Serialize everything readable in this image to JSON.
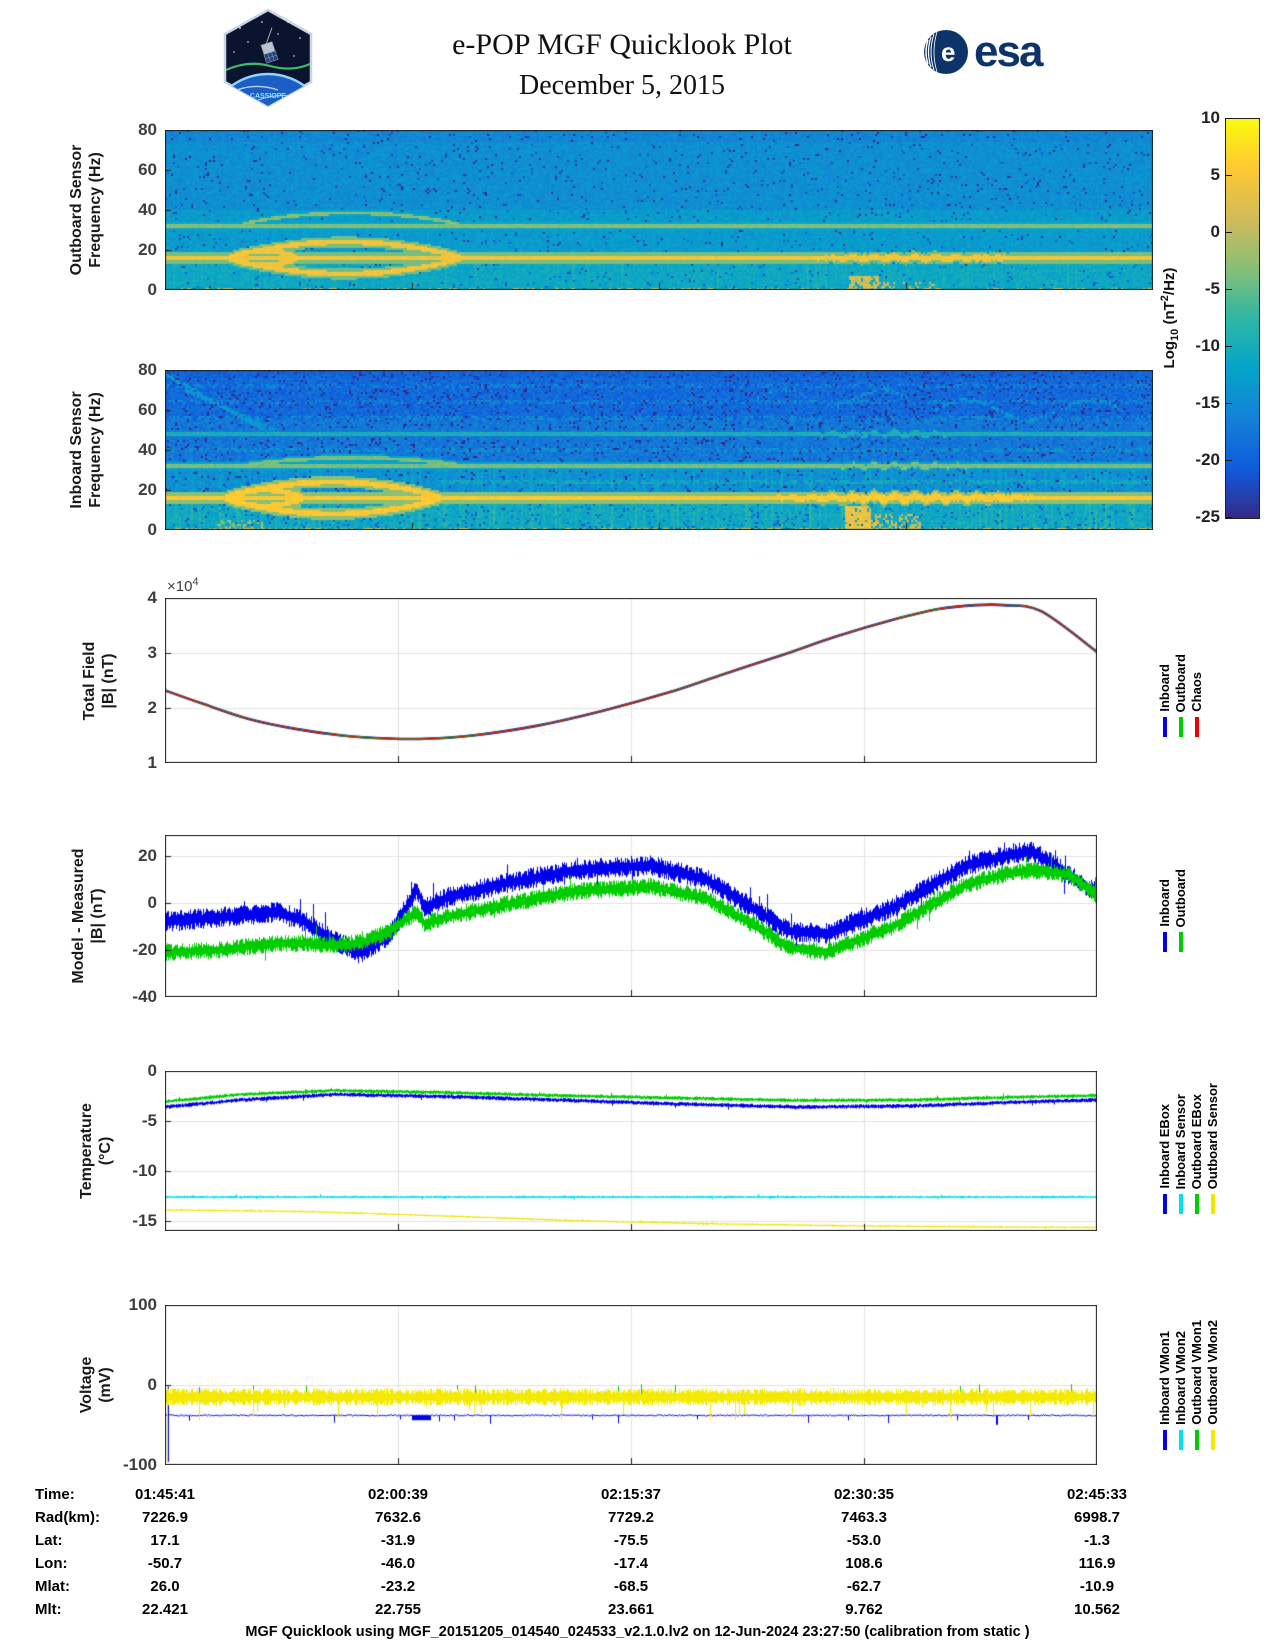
{
  "header": {
    "title": "e-POP MGF Quicklook Plot",
    "date": "December 5, 2015",
    "esa_label": "esa",
    "patch_label": "CASSIOPE"
  },
  "colorbar": {
    "label": {
      "pre": "Log",
      "sub": "10",
      "mid": " (nT",
      "sup": "2",
      "post": "/Hz)"
    },
    "min": -25,
    "max": 10,
    "tick_vals": [
      10,
      5,
      0,
      -5,
      -10,
      -15,
      -20,
      -25
    ],
    "tick_labels": [
      "10",
      "5",
      "0",
      "-5",
      "-10",
      "-15",
      "-20",
      "-25"
    ],
    "colors": [
      "#352a87",
      "#0f5cdd",
      "#1481d6",
      "#06a4ca",
      "#2eb7a4",
      "#87bf77",
      "#d1bb59",
      "#fec832",
      "#f9fb0e"
    ]
  },
  "chart_data": [
    {
      "type": "heatmap",
      "name": "outboard-spectrogram",
      "ylabel": [
        "Outboard Sensor",
        "Frequency (Hz)"
      ],
      "ylim": [
        0,
        80
      ],
      "ytick_vals": [
        80,
        60,
        40,
        20,
        0
      ],
      "ytick_labels": [
        "80",
        "60",
        "40",
        "20",
        "0"
      ],
      "value_units": "Log10 (nT^2/Hz)",
      "bands": [
        {
          "fmin": 40,
          "fmax": 80,
          "v": 0.3
        },
        {
          "fmin": 18,
          "fmax": 40,
          "v": 0.345
        },
        {
          "fmin": 0,
          "fmax": 18,
          "v": 0.4
        }
      ],
      "top_dark": {
        "fmin": 74,
        "v": 0.27
      },
      "noise": 0.045,
      "dark_speckle": 0.035,
      "lines": [
        {
          "f": 32,
          "v": 0.64,
          "hw": 0.8,
          "bump": {
            "x0": 0.075,
            "x1": 0.3,
            "amp": 6.5
          }
        },
        {
          "f": 16,
          "v": 0.85,
          "hw": 1.3,
          "eyes": [
            {
              "x0": 0.064,
              "x1": 0.3,
              "amp": 8
            },
            {
              "x0": 0.064,
              "x1": 0.135,
              "amp": 3.5
            }
          ],
          "wiggle": {
            "x0": 0.66,
            "x1": 0.86,
            "amp": 1.6
          }
        }
      ],
      "bursts": [
        {
          "x0": 0.693,
          "x1": 0.722,
          "fmax": 7,
          "v": 0.8,
          "density": 0.8
        },
        {
          "x0": 0.722,
          "x1": 0.78,
          "fmax": 4,
          "v": 0.78,
          "density": 0.3
        }
      ],
      "bottom_speckle": {
        "fmax": 1.4,
        "v": 0.78,
        "density": 0.3
      },
      "streaks": {
        "prob": 0.06,
        "add": 0.035,
        "fmax": 20
      }
    },
    {
      "type": "heatmap",
      "name": "inboard-spectrogram",
      "ylabel": [
        "Inboard Sensor",
        "Frequency (Hz)"
      ],
      "ylim": [
        0,
        80
      ],
      "ytick_vals": [
        80,
        60,
        40,
        20,
        0
      ],
      "ytick_labels": [
        "80",
        "60",
        "40",
        "20",
        "0"
      ],
      "value_units": "Log10 (nT^2/Hz)",
      "bands": [
        {
          "fmin": 55,
          "fmax": 80,
          "v": 0.17
        },
        {
          "fmin": 30,
          "fmax": 55,
          "v": 0.22
        },
        {
          "fmin": 18,
          "fmax": 30,
          "v": 0.3
        },
        {
          "fmin": 0,
          "fmax": 18,
          "v": 0.4
        }
      ],
      "top_dark": {
        "fmin": 76,
        "v": 0.15
      },
      "noise": 0.055,
      "dark_speckle": 0.06,
      "lines": [
        {
          "f": 48,
          "v": 0.46,
          "hw": 0.8,
          "wiggle": {
            "x0": 0.64,
            "x1": 0.82,
            "amp": 2.0
          }
        },
        {
          "f": 32,
          "v": 0.62,
          "hw": 0.9,
          "bump": {
            "x0": 0.08,
            "x1": 0.3,
            "amp": 4
          },
          "wiggle": {
            "x0": 0.64,
            "x1": 0.86,
            "amp": 1.5
          }
        },
        {
          "f": 16,
          "v": 0.88,
          "hw": 1.4,
          "eyes": [
            {
              "x0": 0.06,
              "x1": 0.28,
              "amp": 8
            },
            {
              "x0": 0.06,
              "x1": 0.14,
              "amp": 4
            }
          ],
          "wiggle": {
            "x0": 0.62,
            "x1": 0.88,
            "amp": 2.2
          }
        }
      ],
      "faint_lines": [
        {
          "f": 24,
          "v": 0.42,
          "hw": 0.6,
          "density": 0.55,
          "x0": 0.28
        },
        {
          "f": 40,
          "v": 0.33,
          "hw": 0.5,
          "density": 0.35
        },
        {
          "f": 56,
          "v": 0.3,
          "hw": 0.6,
          "density": 0.4
        },
        {
          "f": 64,
          "v": 0.29,
          "hw": 0.6,
          "density": 0.35
        },
        {
          "f": 72,
          "v": 0.28,
          "hw": 0.5,
          "density": 0.3
        }
      ],
      "top_curves": [
        {
          "x0": 0.0,
          "x1": 0.1,
          "f0": 78,
          "f1": 50,
          "v": 0.35,
          "density": 0.7
        },
        {
          "x0": 0.02,
          "x1": 0.12,
          "f0": 70,
          "f1": 48,
          "v": 0.33,
          "density": 0.7
        },
        {
          "x0": 0.78,
          "x1": 0.97,
          "f": 60,
          "amp": 5,
          "v": 0.33,
          "density": 0.6
        },
        {
          "x0": 0.6,
          "x1": 0.75,
          "f": 66,
          "amp": 4,
          "v": 0.32,
          "density": 0.5
        }
      ],
      "bursts": [
        {
          "x0": 0.688,
          "x1": 0.715,
          "fmax": 12,
          "v": 0.88,
          "density": 0.9
        },
        {
          "x0": 0.715,
          "x1": 0.765,
          "fmax": 8,
          "v": 0.8,
          "density": 0.45
        },
        {
          "x0": 0.05,
          "x1": 0.1,
          "fmax": 5,
          "v": 0.7,
          "density": 0.3
        }
      ],
      "bottom_speckle": {
        "fmax": 1.4,
        "v": 0.8,
        "density": 0.4
      },
      "streaks": {
        "prob": 0.22,
        "add": 0.05,
        "fmax": 32
      }
    },
    {
      "type": "line",
      "name": "total-field",
      "ylabel": [
        "Total Field",
        "|B| (nT)"
      ],
      "exponent": {
        "text": "×10",
        "sup": "4"
      },
      "ylim": [
        1,
        4
      ],
      "ytick_vals": [
        4,
        3,
        2,
        1
      ],
      "ytick_labels": [
        "4",
        "3",
        "2",
        "1"
      ],
      "y_units": "nT x 1e4",
      "x": [
        0,
        0.04,
        0.09,
        0.14,
        0.19,
        0.24,
        0.28,
        0.33,
        0.4,
        0.47,
        0.54,
        0.6,
        0.66,
        0.72,
        0.78,
        0.83,
        0.87,
        0.9,
        0.94,
        1.0
      ],
      "y": [
        2.32,
        2.08,
        1.8,
        1.62,
        1.5,
        1.445,
        1.44,
        1.5,
        1.68,
        1.95,
        2.28,
        2.62,
        2.95,
        3.3,
        3.6,
        3.8,
        3.87,
        3.87,
        3.76,
        3.02
      ],
      "series": [
        {
          "name": "Inboard",
          "color": "#0000ee",
          "lw": 2.6
        },
        {
          "name": "Outboard",
          "color": "#00cc00",
          "lw": 1.8
        },
        {
          "name": "Chaos",
          "color": "#ee0000",
          "lw": 1.1
        }
      ],
      "legend": [
        {
          "label": "Inboard",
          "color": "#0000ee"
        },
        {
          "label": "Outboard",
          "color": "#00cc00"
        },
        {
          "label": "Chaos",
          "color": "#ee0000"
        }
      ]
    },
    {
      "type": "band",
      "name": "model-minus-measured",
      "ylabel": [
        "Model - Measured",
        "|B| (nT)"
      ],
      "ylim": [
        -40,
        28.9
      ],
      "ytick_vals": [
        20,
        0,
        -20,
        -40
      ],
      "ytick_labels": [
        "20",
        "0",
        "-20",
        "-40"
      ],
      "series": [
        {
          "name": "Inboard",
          "color": "#0000ee",
          "noise": 4.5,
          "x": [
            0,
            0.06,
            0.12,
            0.15,
            0.18,
            0.21,
            0.24,
            0.27,
            0.278,
            0.3,
            0.36,
            0.44,
            0.52,
            0.58,
            0.63,
            0.67,
            0.71,
            0.78,
            0.86,
            0.91,
            0.93,
            0.97,
            1.0
          ],
          "y": [
            -8,
            -6,
            -4,
            -8,
            -16,
            -21,
            -14,
            6,
            -2,
            2,
            8,
            14,
            16,
            10,
            -2,
            -12,
            -13,
            -2,
            16,
            21,
            22,
            12,
            4
          ]
        },
        {
          "name": "Outboard",
          "color": "#00cc00",
          "noise": 3.8,
          "x": [
            0,
            0.06,
            0.12,
            0.15,
            0.18,
            0.21,
            0.24,
            0.27,
            0.278,
            0.3,
            0.36,
            0.44,
            0.52,
            0.58,
            0.63,
            0.67,
            0.71,
            0.78,
            0.86,
            0.91,
            0.93,
            0.97,
            1.0
          ],
          "y": [
            -21,
            -20,
            -17,
            -17,
            -18,
            -17,
            -12,
            -4,
            -9,
            -6,
            -1,
            5,
            7,
            2,
            -9,
            -19,
            -21,
            -10,
            8,
            13,
            14,
            12,
            3
          ]
        }
      ],
      "legend": [
        {
          "label": "Inboard",
          "color": "#0000ee"
        },
        {
          "label": "Outboard",
          "color": "#00cc00"
        }
      ]
    },
    {
      "type": "band",
      "name": "temperature",
      "ylabel": [
        "Temperature",
        "(°C)"
      ],
      "ylim": [
        -16,
        0
      ],
      "ytick_vals": [
        0,
        -5,
        -10,
        -15
      ],
      "ytick_labels": [
        "0",
        "-5",
        "-10",
        "-15"
      ],
      "series": [
        {
          "name": "Inboard EBox",
          "color": "#0000ee",
          "noise": 0.22,
          "x": [
            0,
            0.08,
            0.18,
            0.3,
            0.42,
            0.55,
            0.68,
            0.8,
            0.92,
            1.0
          ],
          "y": [
            -3.6,
            -2.9,
            -2.35,
            -2.55,
            -2.9,
            -3.3,
            -3.6,
            -3.5,
            -3.1,
            -2.9
          ]
        },
        {
          "name": "Inboard Sensor",
          "color": "#00e0f0",
          "noise": 0.13,
          "x": [
            0,
            1
          ],
          "y": [
            -12.6,
            -12.6
          ]
        },
        {
          "name": "Outboard EBox",
          "color": "#00cc00",
          "noise": 0.2,
          "x": [
            0,
            0.08,
            0.18,
            0.3,
            0.42,
            0.55,
            0.68,
            0.8,
            0.92,
            1.0
          ],
          "y": [
            -3.05,
            -2.35,
            -1.95,
            -2.15,
            -2.45,
            -2.7,
            -2.95,
            -2.9,
            -2.6,
            -2.45
          ]
        },
        {
          "name": "Outboard Sensor",
          "color": "#f0e600",
          "noise": 0.1,
          "x": [
            0,
            0.15,
            0.3,
            0.45,
            0.6,
            0.75,
            0.9,
            1.0
          ],
          "y": [
            -13.9,
            -14.05,
            -14.5,
            -15.0,
            -15.3,
            -15.5,
            -15.6,
            -15.65
          ]
        }
      ],
      "legend": [
        {
          "label": "Inboard EBox",
          "color": "#0000ee"
        },
        {
          "label": "Inboard Sensor",
          "color": "#00e0f0"
        },
        {
          "label": "Outboard EBox",
          "color": "#00cc00"
        },
        {
          "label": "Outboard Sensor",
          "color": "#f0e600"
        }
      ]
    },
    {
      "type": "voltage",
      "name": "voltage",
      "ylabel": [
        "Voltage",
        "(mV)"
      ],
      "ylim": [
        -100,
        100
      ],
      "ytick_vals": [
        100,
        0,
        -100
      ],
      "ytick_labels": [
        "100",
        "0",
        "-100"
      ],
      "series": [
        {
          "name": "Inboard VMon1",
          "color": "#0000ee",
          "mode": "line",
          "base": -38,
          "noise": 0.8,
          "down_prob": 0.012,
          "down_to": -50,
          "init_spike": -96,
          "steps": [
            {
              "x0": 0.265,
              "x1": 0.285,
              "y": -44
            }
          ]
        },
        {
          "name": "Inboard VMon2",
          "color": "#00e0f0",
          "mode": "hidden",
          "base": -12,
          "noise": 1,
          "init_spike": -96
        },
        {
          "name": "Outboard VMon1",
          "color": "#00cc00",
          "mode": "spikes",
          "base": -14,
          "noise": 6,
          "up_prob": 0.012,
          "up_to": -3,
          "init_spike": -96
        },
        {
          "name": "Outboard VMon2",
          "color": "#f3ea00",
          "mode": "band",
          "base": -15,
          "half": 11,
          "down_prob": 0.03,
          "down_to": -44,
          "up_prob": 0.012,
          "up_to": -4,
          "init_spike": -96
        }
      ],
      "legend": [
        {
          "label": "Inboard VMon1",
          "color": "#0000ee"
        },
        {
          "label": "Inboard VMon2",
          "color": "#00e0f0"
        },
        {
          "label": "Outboard VMon1",
          "color": "#00cc00"
        },
        {
          "label": "Outboard VMon2",
          "color": "#f3ea00"
        }
      ]
    }
  ],
  "table": {
    "rows": [
      {
        "label": "Time:",
        "values": [
          "01:45:41",
          "02:00:39",
          "02:15:37",
          "02:30:35",
          "02:45:33"
        ]
      },
      {
        "label": "Rad(km):",
        "values": [
          "7226.9",
          "7632.6",
          "7729.2",
          "7463.3",
          "6998.7"
        ]
      },
      {
        "label": "Lat:",
        "values": [
          "17.1",
          "-31.9",
          "-75.5",
          "-53.0",
          "-1.3"
        ]
      },
      {
        "label": "Lon:",
        "values": [
          "-50.7",
          "-46.0",
          "-17.4",
          "108.6",
          "116.9"
        ]
      },
      {
        "label": "Mlat:",
        "values": [
          "26.0",
          "-23.2",
          "-68.5",
          "-62.7",
          "-10.9"
        ]
      },
      {
        "label": "Mlt:",
        "values": [
          "22.421",
          "22.755",
          "23.661",
          "9.762",
          "10.562"
        ]
      }
    ]
  },
  "footer": "MGF Quicklook using MGF_20151205_014540_024533_v2.1.0.lv2 on 12-Jun-2024 23:27:50 (calibration from static )"
}
